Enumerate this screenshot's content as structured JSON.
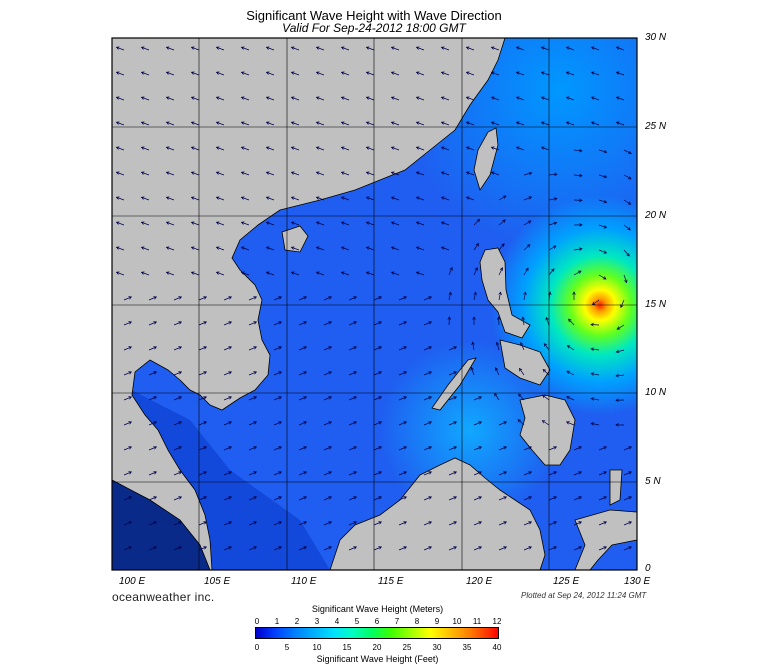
{
  "header": {
    "title": "Significant Wave Height with Wave Direction",
    "valid": "Valid For Sep-24-2012 18:00 GMT"
  },
  "map": {
    "lat_labels": [
      "30 N",
      "25 N",
      "20 N",
      "15 N",
      "10 N",
      "5 N",
      "0"
    ],
    "lon_labels": [
      "100 E",
      "105 E",
      "110 E",
      "115 E",
      "120 E",
      "125 E",
      "130 E"
    ],
    "land_color": "#c0c0c0",
    "ocean_color": "#1f5ef0",
    "storm_center": {
      "lat": 15.5,
      "lon": 127.5
    }
  },
  "footer": {
    "brand": "oceanweather inc.",
    "plotted": "Plotted at Sep 24, 2012 11:24 GMT"
  },
  "colorbar": {
    "meters_title": "Significant Wave Height (Meters)",
    "feet_title": "Significant Wave Height (Feet)",
    "meters_ticks": [
      "0",
      "1",
      "2",
      "3",
      "4",
      "5",
      "6",
      "7",
      "8",
      "9",
      "10",
      "11",
      "12"
    ],
    "feet_ticks": [
      "0",
      "5",
      "10",
      "15",
      "20",
      "25",
      "30",
      "35",
      "40"
    ]
  }
}
